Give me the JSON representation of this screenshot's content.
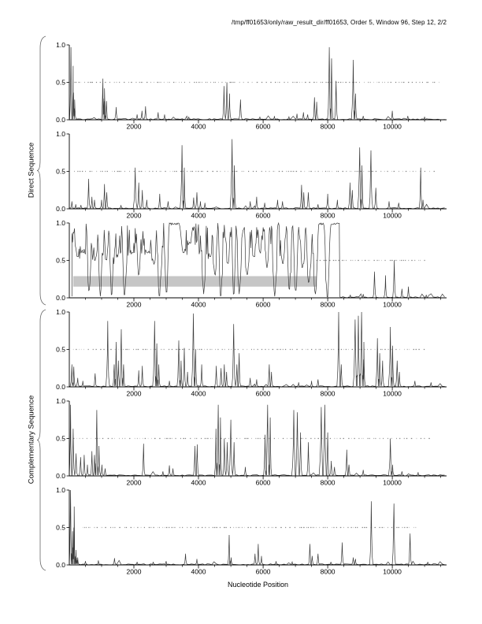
{
  "header": {
    "title": "/tmp/ff01653/only/raw_result_dir/ff01653, Order 5, Window 96, Step 12, 2/2"
  },
  "labels": {
    "direct_group": "Direct Sequence",
    "complementary_group": "Complementary Sequence",
    "x_axis": "Nucleotide Position"
  },
  "colors": {
    "trace": "#3a3a3a",
    "axis": "#000000",
    "dashes": "#858585",
    "band": "#c6c6c6",
    "background": "#ffffff",
    "brace": "#666666"
  },
  "axes": {
    "x_max": 11680,
    "x_minor_step": 500,
    "x_ticks": [
      2000,
      4000,
      6000,
      8000,
      10000
    ],
    "y_ticks": [
      {
        "label": "1.0",
        "value": 1.0
      },
      {
        "label": "0.5",
        "value": 0.5
      },
      {
        "label": "0.0",
        "value": 0.0
      }
    ]
  },
  "chart_data": {
    "type": "line",
    "title": "/tmp/ff01653/only/raw_result_dir/ff01653, Order 5, Window 96, Step 12, 2/2",
    "xlabel": "Nucleotide Position",
    "ylim": [
      0,
      1
    ],
    "x_range": [
      0,
      11680
    ],
    "threshold_y": 0.5,
    "panels": [
      {
        "id": 1,
        "group": "Direct Sequence",
        "frame": 1,
        "dash_range": [
          150,
          11450
        ],
        "peaks": [
          [
            50,
            0.97,
            40
          ],
          [
            120,
            0.72,
            40
          ],
          [
            165,
            0.27
          ],
          [
            1040,
            0.55
          ],
          [
            1090,
            0.42
          ],
          [
            1150,
            0.25
          ],
          [
            1450,
            0.17
          ],
          [
            2100,
            0.07
          ],
          [
            2250,
            0.12
          ],
          [
            2360,
            0.18
          ],
          [
            2750,
            0.1
          ],
          [
            2950,
            0.07
          ],
          [
            3700,
            0.04
          ],
          [
            4790,
            0.45
          ],
          [
            4880,
            0.5
          ],
          [
            4960,
            0.35
          ],
          [
            5300,
            0.27
          ],
          [
            5900,
            0.04
          ],
          [
            6350,
            0.05
          ],
          [
            6800,
            0.04
          ],
          [
            7050,
            0.08
          ],
          [
            7250,
            0.1
          ],
          [
            7380,
            0.07
          ],
          [
            7590,
            0.3
          ],
          [
            7660,
            0.24
          ],
          [
            8050,
            0.97,
            55
          ],
          [
            8120,
            0.82
          ],
          [
            8260,
            0.52
          ],
          [
            8790,
            0.8,
            55
          ],
          [
            8860,
            0.35
          ],
          [
            9100,
            0.05
          ],
          [
            10000,
            0.12
          ],
          [
            10480,
            0.05
          ],
          [
            11000,
            0.04
          ]
        ]
      },
      {
        "id": 2,
        "group": "Direct Sequence",
        "frame": 2,
        "dash_range": [
          150,
          11300
        ],
        "peaks": [
          [
            80,
            0.1
          ],
          [
            200,
            0.06
          ],
          [
            360,
            0.05
          ],
          [
            600,
            0.4
          ],
          [
            700,
            0.16
          ],
          [
            780,
            0.12
          ],
          [
            1000,
            0.12
          ],
          [
            1090,
            0.33
          ],
          [
            1160,
            0.22
          ],
          [
            1600,
            0.05
          ],
          [
            2040,
            0.55,
            60
          ],
          [
            2150,
            0.35
          ],
          [
            2260,
            0.25
          ],
          [
            2400,
            0.12
          ],
          [
            2800,
            0.2
          ],
          [
            3060,
            0.1
          ],
          [
            3490,
            0.85,
            60
          ],
          [
            3560,
            0.55
          ],
          [
            3850,
            0.15
          ],
          [
            3950,
            0.22
          ],
          [
            4060,
            0.1
          ],
          [
            4200,
            0.08
          ],
          [
            5040,
            0.93,
            60
          ],
          [
            5110,
            0.58
          ],
          [
            5600,
            0.1
          ],
          [
            5800,
            0.16
          ],
          [
            6050,
            0.08
          ],
          [
            6450,
            0.12
          ],
          [
            6600,
            0.1
          ],
          [
            7190,
            0.32
          ],
          [
            7260,
            0.22
          ],
          [
            7400,
            0.22
          ],
          [
            7700,
            0.06
          ],
          [
            8000,
            0.2
          ],
          [
            8300,
            0.12
          ],
          [
            8690,
            0.35
          ],
          [
            8760,
            0.25
          ],
          [
            8990,
            0.82,
            60
          ],
          [
            9060,
            0.58
          ],
          [
            9340,
            0.78,
            55
          ],
          [
            9490,
            0.28
          ],
          [
            9900,
            0.1
          ],
          [
            10200,
            0.08
          ],
          [
            10880,
            0.55
          ],
          [
            10950,
            0.12
          ]
        ]
      },
      {
        "id": 3,
        "group": "Direct Sequence",
        "frame": 3,
        "dash_range": [
          7650,
          11050
        ],
        "band": {
          "x": [
            120,
            7670
          ],
          "y": [
            0.15,
            0.29
          ]
        },
        "dense": {
          "range": [
            80,
            8360
          ],
          "noise": 0.5,
          "step": 20,
          "plateaus": [
            [
              3060,
              3500
            ],
            [
              7700,
              7930
            ],
            [
              8060,
              8350
            ]
          ],
          "dips": [
            [
              260,
              0.55,
              110
            ],
            [
              430,
              0.6,
              100
            ],
            [
              610,
              0.08,
              90
            ],
            [
              800,
              0.5,
              100
            ],
            [
              960,
              0.02,
              90
            ],
            [
              1150,
              0.5,
              90
            ],
            [
              1310,
              0.02,
              90
            ],
            [
              1500,
              0.55,
              90
            ],
            [
              1710,
              0.02,
              100
            ],
            [
              1950,
              0.6,
              110
            ],
            [
              2150,
              0.3,
              100
            ],
            [
              2420,
              0.6,
              200
            ],
            [
              2620,
              0.45,
              110
            ],
            [
              2790,
              0.0,
              90
            ],
            [
              3010,
              0.05,
              90
            ],
            [
              3530,
              0.6,
              130
            ],
            [
              3700,
              0.72,
              90
            ],
            [
              4160,
              0.05,
              90
            ],
            [
              4360,
              0.55,
              100
            ],
            [
              4510,
              0.3,
              90
            ],
            [
              4690,
              0.0,
              90
            ],
            [
              4910,
              0.45,
              100
            ],
            [
              5090,
              0.02,
              80
            ],
            [
              5260,
              0.05,
              90
            ],
            [
              5510,
              0.3,
              110
            ],
            [
              5720,
              0.55,
              100
            ],
            [
              5910,
              0.6,
              90
            ],
            [
              6120,
              0.4,
              100
            ],
            [
              6360,
              0.02,
              100
            ],
            [
              6610,
              0.45,
              100
            ],
            [
              6810,
              0.1,
              90
            ],
            [
              7010,
              0.08,
              100
            ],
            [
              7210,
              0.4,
              90
            ],
            [
              7410,
              0.2,
              100
            ],
            [
              7620,
              0.05,
              110
            ],
            [
              7990,
              0.0,
              110
            ]
          ]
        },
        "peaks": [
          [
            8700,
            0.04
          ],
          [
            9100,
            0.05
          ],
          [
            9450,
            0.35
          ],
          [
            9790,
            0.3
          ],
          [
            10060,
            0.5
          ],
          [
            10300,
            0.12
          ],
          [
            10500,
            0.15
          ],
          [
            11050,
            0.04
          ]
        ]
      },
      {
        "id": 4,
        "group": "Complementary Sequence",
        "frame": 4,
        "dash_range": [
          120,
          11000
        ],
        "peaks": [
          [
            80,
            0.3,
            50
          ],
          [
            140,
            0.27
          ],
          [
            260,
            0.12
          ],
          [
            420,
            0.08
          ],
          [
            800,
            0.18
          ],
          [
            1190,
            0.88,
            55
          ],
          [
            1390,
            0.3
          ],
          [
            1450,
            0.6
          ],
          [
            1520,
            0.35
          ],
          [
            1610,
            0.77,
            55
          ],
          [
            1680,
            0.3
          ],
          [
            2150,
            0.22
          ],
          [
            2260,
            0.28
          ],
          [
            2640,
            0.88,
            60
          ],
          [
            2710,
            0.58
          ],
          [
            2770,
            0.3
          ],
          [
            3100,
            0.08
          ],
          [
            3390,
            0.62,
            55
          ],
          [
            3460,
            0.35
          ],
          [
            3560,
            0.52
          ],
          [
            3660,
            0.2
          ],
          [
            3840,
            0.98,
            55
          ],
          [
            3910,
            0.5
          ],
          [
            4100,
            0.3
          ],
          [
            4550,
            0.28
          ],
          [
            4700,
            0.25
          ],
          [
            4800,
            0.3
          ],
          [
            4870,
            0.2
          ],
          [
            5090,
            0.84,
            55
          ],
          [
            5190,
            0.3
          ],
          [
            5260,
            0.45
          ],
          [
            5600,
            0.12
          ],
          [
            5800,
            0.1
          ],
          [
            6190,
            0.3
          ],
          [
            6260,
            0.2
          ],
          [
            7100,
            0.06
          ],
          [
            7500,
            0.08
          ],
          [
            7700,
            0.1
          ],
          [
            8340,
            1.0,
            55
          ],
          [
            8420,
            0.3
          ],
          [
            8850,
            0.9,
            65
          ],
          [
            8950,
            0.95,
            65
          ],
          [
            9050,
            1.0,
            65
          ],
          [
            9120,
            0.6
          ],
          [
            9540,
            0.65,
            55
          ],
          [
            9610,
            0.45
          ],
          [
            9700,
            0.35
          ],
          [
            9940,
            0.8,
            60
          ],
          [
            10010,
            0.55
          ],
          [
            10150,
            0.35
          ],
          [
            10220,
            0.2
          ],
          [
            10700,
            0.08
          ],
          [
            11200,
            0.06
          ]
        ]
      },
      {
        "id": 5,
        "group": "Complementary Sequence",
        "frame": 5,
        "dash_range": [
          120,
          11200
        ],
        "peaks": [
          [
            40,
            0.95,
            45
          ],
          [
            120,
            0.63
          ],
          [
            210,
            0.3
          ],
          [
            350,
            0.25
          ],
          [
            460,
            0.28
          ],
          [
            560,
            0.15
          ],
          [
            700,
            0.33
          ],
          [
            780,
            0.28
          ],
          [
            850,
            0.88,
            50
          ],
          [
            920,
            0.4
          ],
          [
            1010,
            0.15
          ],
          [
            1110,
            0.1
          ],
          [
            2300,
            0.43
          ],
          [
            2900,
            0.06
          ],
          [
            3100,
            0.14
          ],
          [
            3210,
            0.1
          ],
          [
            3890,
            0.4
          ],
          [
            3960,
            0.42
          ],
          [
            4540,
            0.63
          ],
          [
            4610,
            0.95,
            55
          ],
          [
            4680,
            0.78
          ],
          [
            4800,
            0.5
          ],
          [
            4890,
            0.45
          ],
          [
            5000,
            0.75,
            55
          ],
          [
            5100,
            0.45
          ],
          [
            5450,
            0.12
          ],
          [
            6060,
            0.55
          ],
          [
            6140,
            0.95,
            60
          ],
          [
            6220,
            0.78
          ],
          [
            6950,
            0.88,
            65
          ],
          [
            7060,
            0.85,
            65
          ],
          [
            7160,
            0.58
          ],
          [
            7400,
            0.45
          ],
          [
            7800,
            0.92,
            65
          ],
          [
            7910,
            0.95,
            65
          ],
          [
            8000,
            0.58
          ],
          [
            8110,
            0.2
          ],
          [
            8210,
            0.12
          ],
          [
            8590,
            0.35
          ],
          [
            8660,
            0.15
          ],
          [
            9100,
            0.08
          ],
          [
            9940,
            0.5,
            55
          ],
          [
            10010,
            0.15
          ],
          [
            10300,
            0.06
          ],
          [
            10800,
            0.05
          ]
        ]
      },
      {
        "id": 6,
        "group": "Complementary Sequence",
        "frame": 6,
        "dash_range": [
          430,
          10750
        ],
        "peaks": [
          [
            40,
            1.0,
            45
          ],
          [
            100,
            0.45
          ],
          [
            150,
            0.78,
            45
          ],
          [
            210,
            0.2
          ],
          [
            260,
            0.1
          ],
          [
            500,
            0.05
          ],
          [
            900,
            0.06
          ],
          [
            1400,
            0.09
          ],
          [
            2100,
            0.04
          ],
          [
            2600,
            0.04
          ],
          [
            3000,
            0.05
          ],
          [
            3600,
            0.15
          ],
          [
            3950,
            0.08
          ],
          [
            4950,
            0.4
          ],
          [
            5010,
            0.1
          ],
          [
            5750,
            0.15
          ],
          [
            5850,
            0.28
          ],
          [
            5950,
            0.12
          ],
          [
            6400,
            0.05
          ],
          [
            6900,
            0.04
          ],
          [
            7450,
            0.28
          ],
          [
            7520,
            0.12
          ],
          [
            7700,
            0.15
          ],
          [
            8100,
            0.04
          ],
          [
            8450,
            0.3
          ],
          [
            8790,
            0.1
          ],
          [
            8860,
            0.08
          ],
          [
            9350,
            0.85,
            50
          ],
          [
            10050,
            0.82,
            50
          ],
          [
            10550,
            0.42
          ],
          [
            11100,
            0.04
          ]
        ]
      }
    ]
  }
}
